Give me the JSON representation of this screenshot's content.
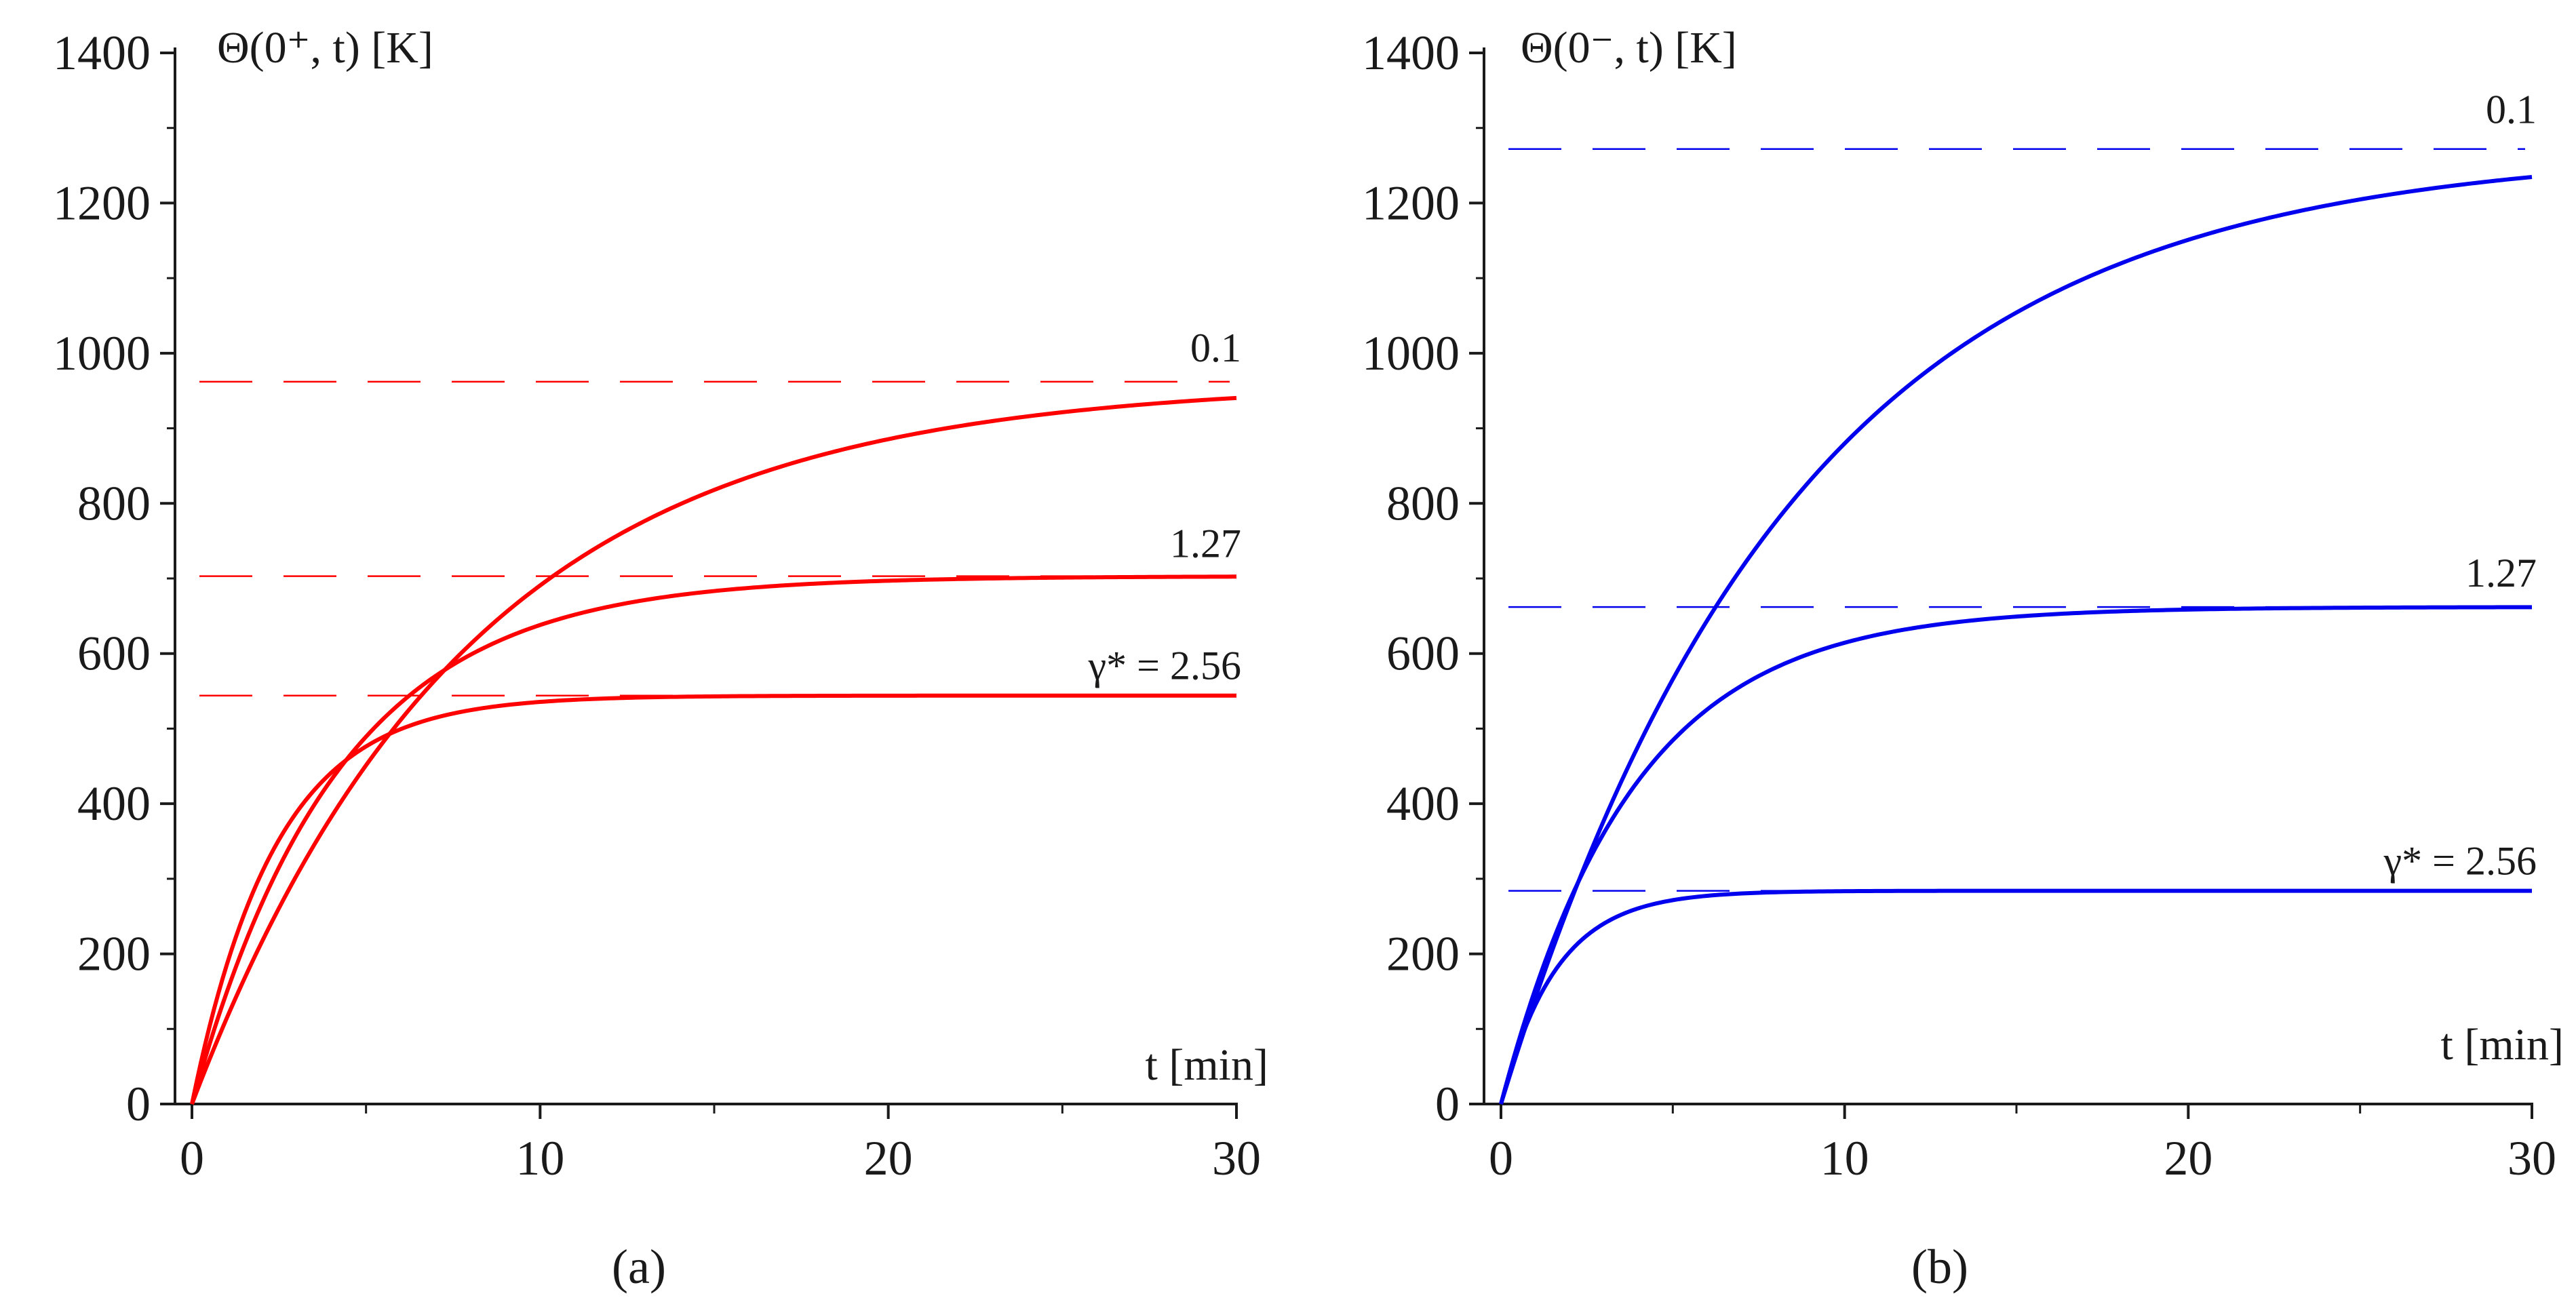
{
  "chart_data": [
    {
      "type": "line",
      "panel_label": "(a)",
      "ylabel": "Θ(0⁺, t) [K]",
      "xlabel": "t [min]",
      "xlim": [
        0,
        30
      ],
      "ylim": [
        0,
        1400
      ],
      "xticks": [
        0,
        10,
        20,
        30
      ],
      "yticks": [
        0,
        200,
        400,
        600,
        800,
        1000,
        1200,
        1400
      ],
      "grid": false,
      "color": "#ff0000",
      "series": [
        {
          "label": "0.1",
          "asymptote": 962,
          "tau": 7.9,
          "x": [
            0,
            2,
            5,
            10,
            15,
            20,
            25,
            30
          ],
          "y": [
            0,
            216,
            453,
            676,
            808,
            885,
            927,
            948
          ]
        },
        {
          "label": "1.27",
          "asymptote": 703,
          "tau": 4.2,
          "x": [
            0,
            2,
            5,
            10,
            15,
            20,
            25,
            30
          ],
          "y": [
            0,
            265,
            487,
            637,
            683,
            697,
            701,
            703
          ]
        },
        {
          "label": "γ* = 2.56",
          "asymptote": 544,
          "tau": 2.4,
          "x": [
            0,
            2,
            5,
            10,
            15,
            20,
            25,
            30
          ],
          "y": [
            0,
            308,
            474,
            536,
            543,
            544,
            544,
            544
          ]
        }
      ]
    },
    {
      "type": "line",
      "panel_label": "(b)",
      "ylabel": "Θ(0⁻, t) [K]",
      "xlabel": "t [min]",
      "xlim": [
        0,
        30
      ],
      "ylim": [
        0,
        1400
      ],
      "xticks": [
        0,
        10,
        20,
        30
      ],
      "yticks": [
        0,
        200,
        400,
        600,
        800,
        1000,
        1200,
        1400
      ],
      "grid": false,
      "color": "#0000ee",
      "series": [
        {
          "label": "0.1",
          "asymptote": 1272,
          "tau": 8.5,
          "x": [
            0,
            2,
            5,
            10,
            15,
            20,
            25,
            30
          ],
          "y": [
            0,
            269,
            560,
            879,
            1062,
            1160,
            1220,
            1248
          ]
        },
        {
          "label": "1.27",
          "asymptote": 662,
          "tau": 3.8,
          "x": [
            0,
            2,
            5,
            10,
            15,
            20,
            25,
            30
          ],
          "y": [
            0,
            270,
            483,
            617,
            650,
            660,
            662,
            662
          ]
        },
        {
          "label": "γ* = 2.56",
          "asymptote": 284,
          "tau": 1.6,
          "x": [
            0,
            2,
            5,
            10,
            15,
            20,
            25,
            30
          ],
          "y": [
            0,
            204,
            272,
            284,
            284,
            284,
            284,
            284
          ]
        }
      ]
    }
  ]
}
